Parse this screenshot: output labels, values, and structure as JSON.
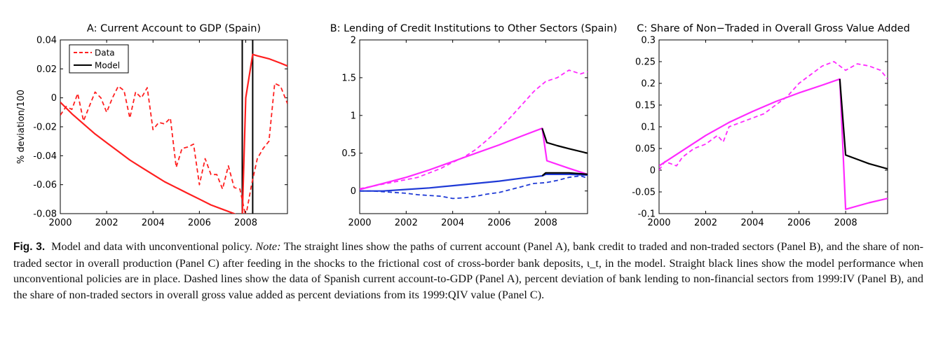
{
  "caption": {
    "label": "Fig. 3.",
    "title": "Model and data with unconventional policy.",
    "note_label": "Note:",
    "note": "The straight lines show the paths of current account (Panel A), bank credit to traded and non-traded sectors (Panel B), and the share of non-traded sector in overall production (Panel C) after feeding in the shocks to the frictional cost of cross-border bank deposits, ι_t, in the model. Straight black lines show the model performance when unconventional policies are in place. Dashed lines show the data of Spanish current account-to-GDP (Panel A), percent deviation of bank lending to non-financial sectors from 1999:IV (Panel B), and the share of non-traded sectors in overall gross value added as percent deviations from its 1999:QIV value (Panel C)."
  },
  "colors": {
    "red": "#ff1f1f",
    "magenta": "#ff29ff",
    "blue": "#1f3ad6",
    "black": "#000000"
  },
  "chart_data": [
    {
      "type": "line",
      "title": "A: Current Account to GDP (Spain)",
      "xlabel": "",
      "ylabel": "% deviation/100",
      "xlim": [
        2000,
        2009.8
      ],
      "ylim": [
        -0.08,
        0.04
      ],
      "xticks": [
        2000,
        2002,
        2004,
        2006,
        2008
      ],
      "yticks": [
        -0.08,
        -0.06,
        -0.04,
        -0.02,
        0,
        0.02,
        0.04
      ],
      "yticklabels": [
        "-0.08",
        "-0.06",
        "-0.04",
        "-0.02",
        "0",
        "0.02",
        "0.04"
      ],
      "grid": false,
      "legend": {
        "position": "top-left",
        "entries": [
          {
            "label": "Data",
            "color": "red",
            "style": "dashed"
          },
          {
            "label": "Model",
            "color": "black",
            "style": "solid"
          }
        ]
      },
      "vlines": [
        {
          "x": 2007.85,
          "color": "black"
        },
        {
          "x": 2008.3,
          "color": "black"
        }
      ],
      "series": [
        {
          "color": "red",
          "style": "dashed",
          "x": [
            2000,
            2000.25,
            2000.5,
            2000.75,
            2001,
            2001.25,
            2001.5,
            2001.75,
            2002,
            2002.25,
            2002.5,
            2002.75,
            2003,
            2003.25,
            2003.5,
            2003.75,
            2004,
            2004.25,
            2004.5,
            2004.75,
            2005,
            2005.25,
            2005.5,
            2005.75,
            2006,
            2006.25,
            2006.5,
            2006.75,
            2007,
            2007.25,
            2007.5,
            2007.75,
            2008,
            2008.25,
            2008.5,
            2008.75,
            2009,
            2009.25,
            2009.5,
            2009.8
          ],
          "y": [
            -0.012,
            -0.006,
            -0.008,
            0.003,
            -0.016,
            -0.006,
            0.004,
            0.0,
            -0.01,
            0.0,
            0.008,
            0.005,
            -0.014,
            0.004,
            0.0,
            0.007,
            -0.022,
            -0.017,
            -0.018,
            -0.014,
            -0.048,
            -0.035,
            -0.034,
            -0.032,
            -0.06,
            -0.042,
            -0.053,
            -0.053,
            -0.063,
            -0.047,
            -0.062,
            -0.063,
            -0.082,
            -0.06,
            -0.042,
            -0.035,
            -0.03,
            0.01,
            0.008,
            -0.004
          ]
        },
        {
          "color": "red",
          "style": "solid",
          "x": [
            2000,
            2000.5,
            2001,
            2001.5,
            2002,
            2002.5,
            2003,
            2003.5,
            2004,
            2004.5,
            2005,
            2005.5,
            2006,
            2006.5,
            2007,
            2007.5,
            2007.85,
            2008,
            2008.3,
            2008.5,
            2009,
            2009.5,
            2009.8
          ],
          "y": [
            -0.003,
            -0.011,
            -0.018,
            -0.025,
            -0.031,
            -0.037,
            -0.043,
            -0.048,
            -0.053,
            -0.058,
            -0.062,
            -0.066,
            -0.07,
            -0.074,
            -0.077,
            -0.08,
            -0.083,
            0.0,
            0.03,
            0.029,
            0.027,
            0.024,
            0.022
          ]
        }
      ]
    },
    {
      "type": "line",
      "title": "B: Lending of Credit Institutions to Other Sectors (Spain)",
      "xlabel": "",
      "ylabel": "",
      "xlim": [
        2000,
        2009.8
      ],
      "ylim": [
        -0.3,
        2
      ],
      "xticks": [
        2000,
        2002,
        2004,
        2006,
        2008
      ],
      "yticks": [
        0,
        0.5,
        1,
        1.5,
        2
      ],
      "yticklabels": [
        "0",
        "0.5",
        "1",
        "1.5",
        "2"
      ],
      "grid": false,
      "series": [
        {
          "color": "magenta",
          "style": "dashed",
          "x": [
            2000,
            2000.5,
            2001,
            2001.5,
            2002,
            2002.5,
            2003,
            2003.5,
            2004,
            2004.5,
            2005,
            2005.5,
            2006,
            2006.5,
            2007,
            2007.5,
            2008,
            2008.5,
            2009,
            2009.5,
            2009.8
          ],
          "y": [
            0.03,
            0.06,
            0.09,
            0.12,
            0.15,
            0.18,
            0.24,
            0.3,
            0.38,
            0.45,
            0.55,
            0.68,
            0.82,
            0.98,
            1.15,
            1.32,
            1.45,
            1.5,
            1.6,
            1.55,
            1.58
          ]
        },
        {
          "color": "magenta",
          "style": "solid",
          "x": [
            2000,
            2001,
            2002,
            2003,
            2004,
            2005,
            2006,
            2007,
            2007.85,
            2008.05,
            2009,
            2009.8
          ],
          "y": [
            0.02,
            0.1,
            0.18,
            0.28,
            0.39,
            0.5,
            0.61,
            0.73,
            0.83,
            0.4,
            0.3,
            0.22
          ]
        },
        {
          "color": "black",
          "style": "solid",
          "x": [
            2007.85,
            2008.05,
            2008.5,
            2009,
            2009.8
          ],
          "y": [
            0.83,
            0.64,
            0.6,
            0.56,
            0.5
          ]
        },
        {
          "color": "blue",
          "style": "dashed",
          "x": [
            2000,
            2000.5,
            2001,
            2001.5,
            2002,
            2002.5,
            2003,
            2003.5,
            2004,
            2004.5,
            2005,
            2005.5,
            2006,
            2006.5,
            2007,
            2007.5,
            2008,
            2008.5,
            2009,
            2009.5,
            2009.8
          ],
          "y": [
            0.0,
            0.0,
            -0.01,
            -0.02,
            -0.03,
            -0.05,
            -0.06,
            -0.07,
            -0.1,
            -0.09,
            -0.07,
            -0.04,
            -0.02,
            0.02,
            0.06,
            0.1,
            0.11,
            0.14,
            0.18,
            0.2,
            0.17
          ]
        },
        {
          "color": "blue",
          "style": "solid",
          "x": [
            2000,
            2001,
            2002,
            2003,
            2004,
            2005,
            2006,
            2007,
            2007.85,
            2008,
            2009,
            2009.8
          ],
          "y": [
            0.0,
            0.0,
            0.02,
            0.04,
            0.07,
            0.1,
            0.13,
            0.17,
            0.2,
            0.22,
            0.22,
            0.21
          ]
        },
        {
          "color": "black",
          "style": "solid",
          "x": [
            2007.85,
            2008,
            2009,
            2009.8
          ],
          "y": [
            0.2,
            0.24,
            0.24,
            0.22
          ]
        }
      ]
    },
    {
      "type": "line",
      "title": "C: Share of Non−Traded in Overall Gross Value Added",
      "xlabel": "",
      "ylabel": "",
      "xlim": [
        2000,
        2009.8
      ],
      "ylim": [
        -0.1,
        0.3
      ],
      "xticks": [
        2000,
        2002,
        2004,
        2006,
        2008
      ],
      "yticks": [
        -0.1,
        -0.05,
        0,
        0.05,
        0.1,
        0.15,
        0.2,
        0.25,
        0.3
      ],
      "yticklabels": [
        "-0.1",
        "-0.05",
        "0",
        "0.05",
        "0.1",
        "0.15",
        "0.2",
        "0.25",
        "0.3"
      ],
      "grid": false,
      "series": [
        {
          "color": "magenta",
          "style": "dashed",
          "x": [
            2000,
            2000.25,
            2000.5,
            2000.75,
            2001,
            2001.5,
            2002,
            2002.5,
            2002.75,
            2003,
            2003.5,
            2004,
            2004.5,
            2005,
            2005.5,
            2006,
            2006.5,
            2007,
            2007.5,
            2008,
            2008.5,
            2009,
            2009.5,
            2009.8
          ],
          "y": [
            0.0,
            0.02,
            0.015,
            0.01,
            0.03,
            0.05,
            0.06,
            0.08,
            0.065,
            0.1,
            0.11,
            0.12,
            0.13,
            0.15,
            0.17,
            0.2,
            0.22,
            0.24,
            0.25,
            0.23,
            0.245,
            0.24,
            0.23,
            0.21
          ]
        },
        {
          "color": "magenta",
          "style": "solid",
          "x": [
            2000,
            2001,
            2002,
            2003,
            2004,
            2005,
            2006,
            2007,
            2007.75,
            2008,
            2009,
            2009.8
          ],
          "y": [
            0.01,
            0.045,
            0.08,
            0.11,
            0.135,
            0.158,
            0.178,
            0.196,
            0.21,
            -0.09,
            -0.075,
            -0.065
          ]
        },
        {
          "color": "black",
          "style": "solid",
          "x": [
            2007.75,
            2008,
            2008.5,
            2009,
            2009.8
          ],
          "y": [
            0.21,
            0.035,
            0.025,
            0.015,
            0.003
          ]
        }
      ]
    }
  ]
}
